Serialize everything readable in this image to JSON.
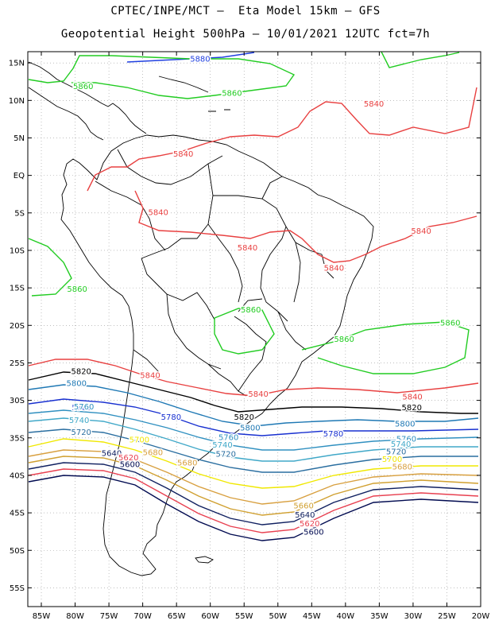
{
  "title_line1": "CPTEC/INPE/MCT –  Eta Model 15km – GFS",
  "title_line2": "Geopotential Height 500hPa – 10/01/2021 12UTC fct=7h",
  "lat_ticks": [
    "15N",
    "10N",
    "5N",
    "EQ",
    "5S",
    "10S",
    "15S",
    "20S",
    "25S",
    "30S",
    "35S",
    "40S",
    "45S",
    "50S",
    "55S"
  ],
  "lon_ticks": [
    "85W",
    "80W",
    "75W",
    "70W",
    "65W",
    "60W",
    "55W",
    "50W",
    "45W",
    "40W",
    "35W",
    "30W",
    "25W",
    "20W"
  ],
  "grid": true,
  "colors": {
    "c5880": "#2040e0",
    "c5860": "#22cc22",
    "c5840": "#e84040",
    "c5820": "#000000",
    "c5800": "#1e78b4",
    "c5780": "#1830d0",
    "c5760": "#3090c0",
    "c5740": "#40a8c8",
    "c5720": "#2a6ea0",
    "c5700": "#f0e800",
    "c5680": "#d8a040",
    "c5660": "#d0a030",
    "c5640": "#102060",
    "c5620": "#e84050",
    "c5600": "#000a50"
  },
  "contour_labels": [
    {
      "text": "5880",
      "c": "c5880",
      "lon": -61.5,
      "lat": 15.2
    },
    {
      "text": "5860",
      "c": "c5860",
      "lon": -78.8,
      "lat": 11.5
    },
    {
      "text": "5860",
      "c": "c5860",
      "lon": -56.8,
      "lat": 10.6
    },
    {
      "text": "5840",
      "c": "c5840",
      "lon": -35.8,
      "lat": 9.2
    },
    {
      "text": "5840",
      "c": "c5840",
      "lon": -64.0,
      "lat": 2.5
    },
    {
      "text": "5840",
      "c": "c5840",
      "lon": -67.7,
      "lat": -5.3
    },
    {
      "text": "5840",
      "c": "c5840",
      "lon": -54.5,
      "lat": -10.0
    },
    {
      "text": "5840",
      "c": "c5840",
      "lon": -28.8,
      "lat": -7.8
    },
    {
      "text": "5840",
      "c": "c5840",
      "lon": -41.7,
      "lat": -12.7
    },
    {
      "text": "5860",
      "c": "c5860",
      "lon": -79.7,
      "lat": -15.5
    },
    {
      "text": "5860",
      "c": "c5860",
      "lon": -54.0,
      "lat": -18.3
    },
    {
      "text": "5860",
      "c": "c5860",
      "lon": -24.5,
      "lat": -20.0
    },
    {
      "text": "5860",
      "c": "c5860",
      "lon": -40.2,
      "lat": -22.2
    },
    {
      "text": "5840",
      "c": "c5840",
      "lon": -68.9,
      "lat": -27.0
    },
    {
      "text": "5840",
      "c": "c5840",
      "lon": -52.9,
      "lat": -29.5
    },
    {
      "text": "5840",
      "c": "c5840",
      "lon": -30.1,
      "lat": -29.9
    },
    {
      "text": "5820",
      "c": "c5820",
      "lon": -79.1,
      "lat": -26.5
    },
    {
      "text": "5800",
      "c": "c5800",
      "lon": -79.8,
      "lat": -28.1
    },
    {
      "text": "5780",
      "c": "c5780",
      "lon": -79.0,
      "lat": -31.3
    },
    {
      "text": "5760",
      "c": "c5760",
      "lon": -78.7,
      "lat": -31.2
    },
    {
      "text": "5740",
      "c": "c5740",
      "lon": -79.4,
      "lat": -33.0
    },
    {
      "text": "5720",
      "c": "c5720",
      "lon": -79.1,
      "lat": -34.6
    },
    {
      "text": "5780",
      "c": "c5780",
      "lon": -65.8,
      "lat": -32.6
    },
    {
      "text": "5820",
      "c": "c5820",
      "lon": -55.0,
      "lat": -32.6
    },
    {
      "text": "5800",
      "c": "c5800",
      "lon": -54.1,
      "lat": -34.0
    },
    {
      "text": "5820",
      "c": "c5820",
      "lon": -30.2,
      "lat": -31.3
    },
    {
      "text": "5800",
      "c": "c5800",
      "lon": -31.2,
      "lat": -33.5
    },
    {
      "text": "5780",
      "c": "c5780",
      "lon": -41.8,
      "lat": -34.8
    },
    {
      "text": "5760",
      "c": "c5760",
      "lon": -57.3,
      "lat": -35.3
    },
    {
      "text": "5740",
      "c": "c5740",
      "lon": -58.2,
      "lat": -36.3
    },
    {
      "text": "5720",
      "c": "c5720",
      "lon": -57.7,
      "lat": -37.5
    },
    {
      "text": "5760",
      "c": "c5760",
      "lon": -31.0,
      "lat": -35.5
    },
    {
      "text": "5740",
      "c": "c5740",
      "lon": -31.8,
      "lat": -36.2
    },
    {
      "text": "5720",
      "c": "c5720",
      "lon": -32.5,
      "lat": -37.2
    },
    {
      "text": "5700",
      "c": "c5700",
      "lon": -33.1,
      "lat": -38.2
    },
    {
      "text": "5680",
      "c": "c5680",
      "lon": -31.6,
      "lat": -39.2
    },
    {
      "text": "5700",
      "c": "c5700",
      "lon": -70.5,
      "lat": -35.6
    },
    {
      "text": "5680",
      "c": "c5680",
      "lon": -68.5,
      "lat": -37.3
    },
    {
      "text": "5640",
      "c": "c5640",
      "lon": -74.6,
      "lat": -37.4
    },
    {
      "text": "5620",
      "c": "c5620",
      "lon": -72.1,
      "lat": -38.0
    },
    {
      "text": "5600",
      "c": "c5600",
      "lon": -71.9,
      "lat": -38.9
    },
    {
      "text": "5680",
      "c": "c5680",
      "lon": -63.4,
      "lat": -38.7
    },
    {
      "text": "5660",
      "c": "c5660",
      "lon": -46.2,
      "lat": -44.4
    },
    {
      "text": "5640",
      "c": "c5640",
      "lon": -46.0,
      "lat": -45.6
    },
    {
      "text": "5620",
      "c": "c5620",
      "lon": -45.3,
      "lat": -46.8
    },
    {
      "text": "5600",
      "c": "c5600",
      "lon": -44.7,
      "lat": -47.9
    }
  ]
}
